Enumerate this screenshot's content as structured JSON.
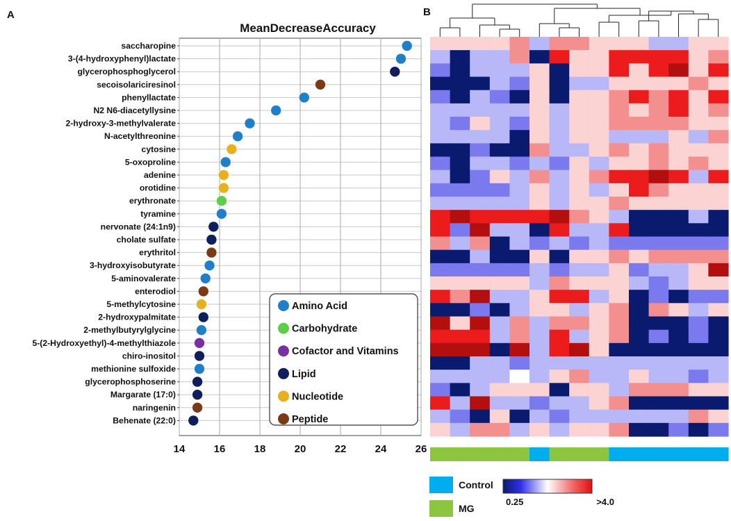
{
  "panel_a_label": "A",
  "panel_b_label": "B",
  "chart_data": [
    {
      "type": "scatter",
      "title": "MeanDecreaseAccuracy",
      "xlabel": "",
      "ylabel": "",
      "xlim": [
        14,
        26
      ],
      "xticks": [
        14,
        16,
        18,
        20,
        22,
        24,
        26
      ],
      "grid": "vertical and horizontal",
      "legend_position": "bottom-right",
      "legend": [
        {
          "name": "Amino Acid",
          "color": "#1f7fc8"
        },
        {
          "name": "Carbohydrate",
          "color": "#5cce4a"
        },
        {
          "name": "Cofactor and Vitamins",
          "color": "#7a2fa0"
        },
        {
          "name": "Lipid",
          "color": "#0f1f5c"
        },
        {
          "name": "Nucleotide",
          "color": "#e6b01e"
        },
        {
          "name": "Peptide",
          "color": "#7b3a14"
        }
      ],
      "points": [
        {
          "label": "saccharopine",
          "value": 25.3,
          "class": "Amino Acid"
        },
        {
          "label": "3-(4-hydroxyphenyl)lactate",
          "value": 25.0,
          "class": "Amino Acid"
        },
        {
          "label": "glycerophosphoglycerol",
          "value": 24.7,
          "class": "Lipid"
        },
        {
          "label": "secoisolariciresinol",
          "value": 21.0,
          "class": "Peptide"
        },
        {
          "label": "phenyllactate",
          "value": 20.2,
          "class": "Amino Acid"
        },
        {
          "label": "N2 N6-diacetyllysine",
          "value": 18.8,
          "class": "Amino Acid"
        },
        {
          "label": "2-hydroxy-3-methylvalerate",
          "value": 17.5,
          "class": "Amino Acid"
        },
        {
          "label": "N-acetylthreonine",
          "value": 16.9,
          "class": "Amino Acid"
        },
        {
          "label": "cytosine",
          "value": 16.6,
          "class": "Nucleotide"
        },
        {
          "label": "5-oxoproline",
          "value": 16.3,
          "class": "Amino Acid"
        },
        {
          "label": "adenine",
          "value": 16.2,
          "class": "Nucleotide"
        },
        {
          "label": "orotidine",
          "value": 16.2,
          "class": "Nucleotide"
        },
        {
          "label": "erythronate",
          "value": 16.1,
          "class": "Carbohydrate"
        },
        {
          "label": "tyramine",
          "value": 16.1,
          "class": "Amino Acid"
        },
        {
          "label": "nervonate (24:1n9)",
          "value": 15.7,
          "class": "Lipid"
        },
        {
          "label": "cholate sulfate",
          "value": 15.6,
          "class": "Lipid"
        },
        {
          "label": "erythritol",
          "value": 15.6,
          "class": "Peptide"
        },
        {
          "label": "3-hydroxyisobutyrate",
          "value": 15.5,
          "class": "Amino Acid"
        },
        {
          "label": "5-aminovalerate",
          "value": 15.3,
          "class": "Amino Acid"
        },
        {
          "label": "enterodiol",
          "value": 15.2,
          "class": "Peptide"
        },
        {
          "label": "5-methylcytosine",
          "value": 15.1,
          "class": "Nucleotide"
        },
        {
          "label": "2-hydroxypalmitate",
          "value": 15.2,
          "class": "Lipid"
        },
        {
          "label": "2-methylbutyrylglycine",
          "value": 15.1,
          "class": "Amino Acid"
        },
        {
          "label": "5-(2-Hydroxyethyl)-4-methylthiazole",
          "value": 15.0,
          "class": "Cofactor and Vitamins"
        },
        {
          "label": "chiro-inositol",
          "value": 15.0,
          "class": "Lipid"
        },
        {
          "label": "methionine sulfoxide",
          "value": 15.0,
          "class": "Amino Acid"
        },
        {
          "label": "glycerophosphoserine",
          "value": 14.9,
          "class": "Lipid"
        },
        {
          "label": "Margarate (17:0)",
          "value": 14.9,
          "class": "Lipid"
        },
        {
          "label": "naringenin",
          "value": 14.9,
          "class": "Peptide"
        },
        {
          "label": "Behenate (22:0)",
          "value": 14.7,
          "class": "Lipid"
        }
      ]
    },
    {
      "type": "heatmap",
      "title": "",
      "color_scale": {
        "low_label": "0.25",
        "high_label": ">4.0",
        "low_color": "#0a1a6e",
        "mid_color": "#ffffff",
        "high_color": "#e01010"
      },
      "group_legend": [
        {
          "name": "Control",
          "color": "#00aeef"
        },
        {
          "name": "MG",
          "color": "#8cc63f"
        }
      ],
      "column_groups": [
        "MG",
        "MG",
        "MG",
        "MG",
        "MG",
        "Control",
        "MG",
        "MG",
        "MG",
        "Control",
        "Control",
        "Control",
        "Control",
        "Control",
        "Control"
      ],
      "levels_note": "0=dark navy,1=mid blue,2=light blue,3=white,4=light pink,5=salmon,6=red,7=dark red",
      "rows": [
        [
          4,
          4,
          4,
          4,
          5,
          2,
          5,
          5,
          4,
          4,
          4,
          2,
          2,
          4,
          4
        ],
        [
          2,
          0,
          2,
          2,
          5,
          0,
          6,
          4,
          4,
          6,
          6,
          6,
          6,
          4,
          5
        ],
        [
          1,
          0,
          2,
          2,
          2,
          4,
          0,
          4,
          4,
          6,
          4,
          6,
          7,
          4,
          6
        ],
        [
          0,
          0,
          0,
          2,
          1,
          4,
          0,
          2,
          2,
          4,
          4,
          4,
          4,
          5,
          4
        ],
        [
          1,
          0,
          2,
          1,
          0,
          4,
          0,
          4,
          4,
          5,
          6,
          5,
          6,
          4,
          6
        ],
        [
          2,
          2,
          2,
          2,
          2,
          4,
          2,
          4,
          4,
          5,
          4,
          5,
          6,
          4,
          5
        ],
        [
          2,
          1,
          4,
          2,
          1,
          4,
          2,
          4,
          4,
          5,
          5,
          5,
          5,
          4,
          4
        ],
        [
          2,
          2,
          2,
          2,
          0,
          4,
          2,
          4,
          4,
          2,
          2,
          2,
          4,
          2,
          5
        ],
        [
          0,
          0,
          1,
          0,
          0,
          5,
          2,
          2,
          4,
          5,
          4,
          5,
          4,
          4,
          4
        ],
        [
          1,
          0,
          2,
          2,
          1,
          2,
          1,
          4,
          2,
          4,
          4,
          5,
          4,
          5,
          4
        ],
        [
          2,
          0,
          1,
          4,
          2,
          5,
          2,
          4,
          5,
          6,
          6,
          7,
          6,
          2,
          6
        ],
        [
          1,
          1,
          1,
          1,
          2,
          4,
          2,
          4,
          2,
          4,
          6,
          5,
          4,
          4,
          4
        ],
        [
          2,
          2,
          2,
          2,
          2,
          4,
          2,
          4,
          4,
          5,
          4,
          4,
          4,
          4,
          4
        ],
        [
          6,
          7,
          6,
          6,
          6,
          6,
          7,
          5,
          4,
          2,
          0,
          0,
          0,
          2,
          0
        ],
        [
          6,
          1,
          7,
          2,
          2,
          0,
          6,
          2,
          2,
          6,
          0,
          0,
          0,
          0,
          0
        ],
        [
          5,
          2,
          5,
          0,
          2,
          1,
          2,
          1,
          2,
          1,
          1,
          1,
          1,
          1,
          1
        ],
        [
          0,
          0,
          2,
          0,
          0,
          4,
          0,
          4,
          4,
          5,
          4,
          5,
          5,
          5,
          5
        ],
        [
          1,
          1,
          1,
          1,
          1,
          2,
          1,
          2,
          2,
          4,
          1,
          2,
          2,
          4,
          7
        ],
        [
          4,
          4,
          4,
          4,
          4,
          2,
          5,
          4,
          4,
          4,
          2,
          1,
          2,
          4,
          4
        ],
        [
          6,
          5,
          7,
          2,
          2,
          4,
          6,
          6,
          2,
          4,
          0,
          1,
          0,
          1,
          1
        ],
        [
          0,
          0,
          1,
          0,
          2,
          4,
          4,
          2,
          4,
          5,
          0,
          5,
          4,
          2,
          4
        ],
        [
          7,
          4,
          7,
          2,
          5,
          2,
          5,
          5,
          4,
          5,
          0,
          0,
          0,
          1,
          0
        ],
        [
          6,
          6,
          6,
          2,
          5,
          2,
          6,
          2,
          4,
          5,
          0,
          1,
          0,
          1,
          0
        ],
        [
          7,
          7,
          7,
          0,
          7,
          2,
          6,
          7,
          4,
          0,
          0,
          0,
          0,
          0,
          0
        ],
        [
          0,
          0,
          2,
          2,
          1,
          2,
          2,
          2,
          2,
          2,
          2,
          2,
          2,
          2,
          2
        ],
        [
          2,
          2,
          2,
          2,
          3,
          2,
          4,
          5,
          2,
          2,
          4,
          2,
          2,
          1,
          2
        ],
        [
          1,
          0,
          2,
          4,
          4,
          4,
          0,
          4,
          4,
          2,
          5,
          5,
          5,
          4,
          4
        ],
        [
          6,
          2,
          7,
          2,
          2,
          1,
          2,
          2,
          4,
          5,
          0,
          0,
          0,
          0,
          0
        ],
        [
          2,
          1,
          0,
          4,
          0,
          2,
          1,
          2,
          2,
          2,
          2,
          2,
          2,
          5,
          4
        ],
        [
          4,
          2,
          5,
          5,
          2,
          4,
          2,
          4,
          4,
          5,
          0,
          0,
          1,
          0,
          1
        ]
      ]
    }
  ]
}
